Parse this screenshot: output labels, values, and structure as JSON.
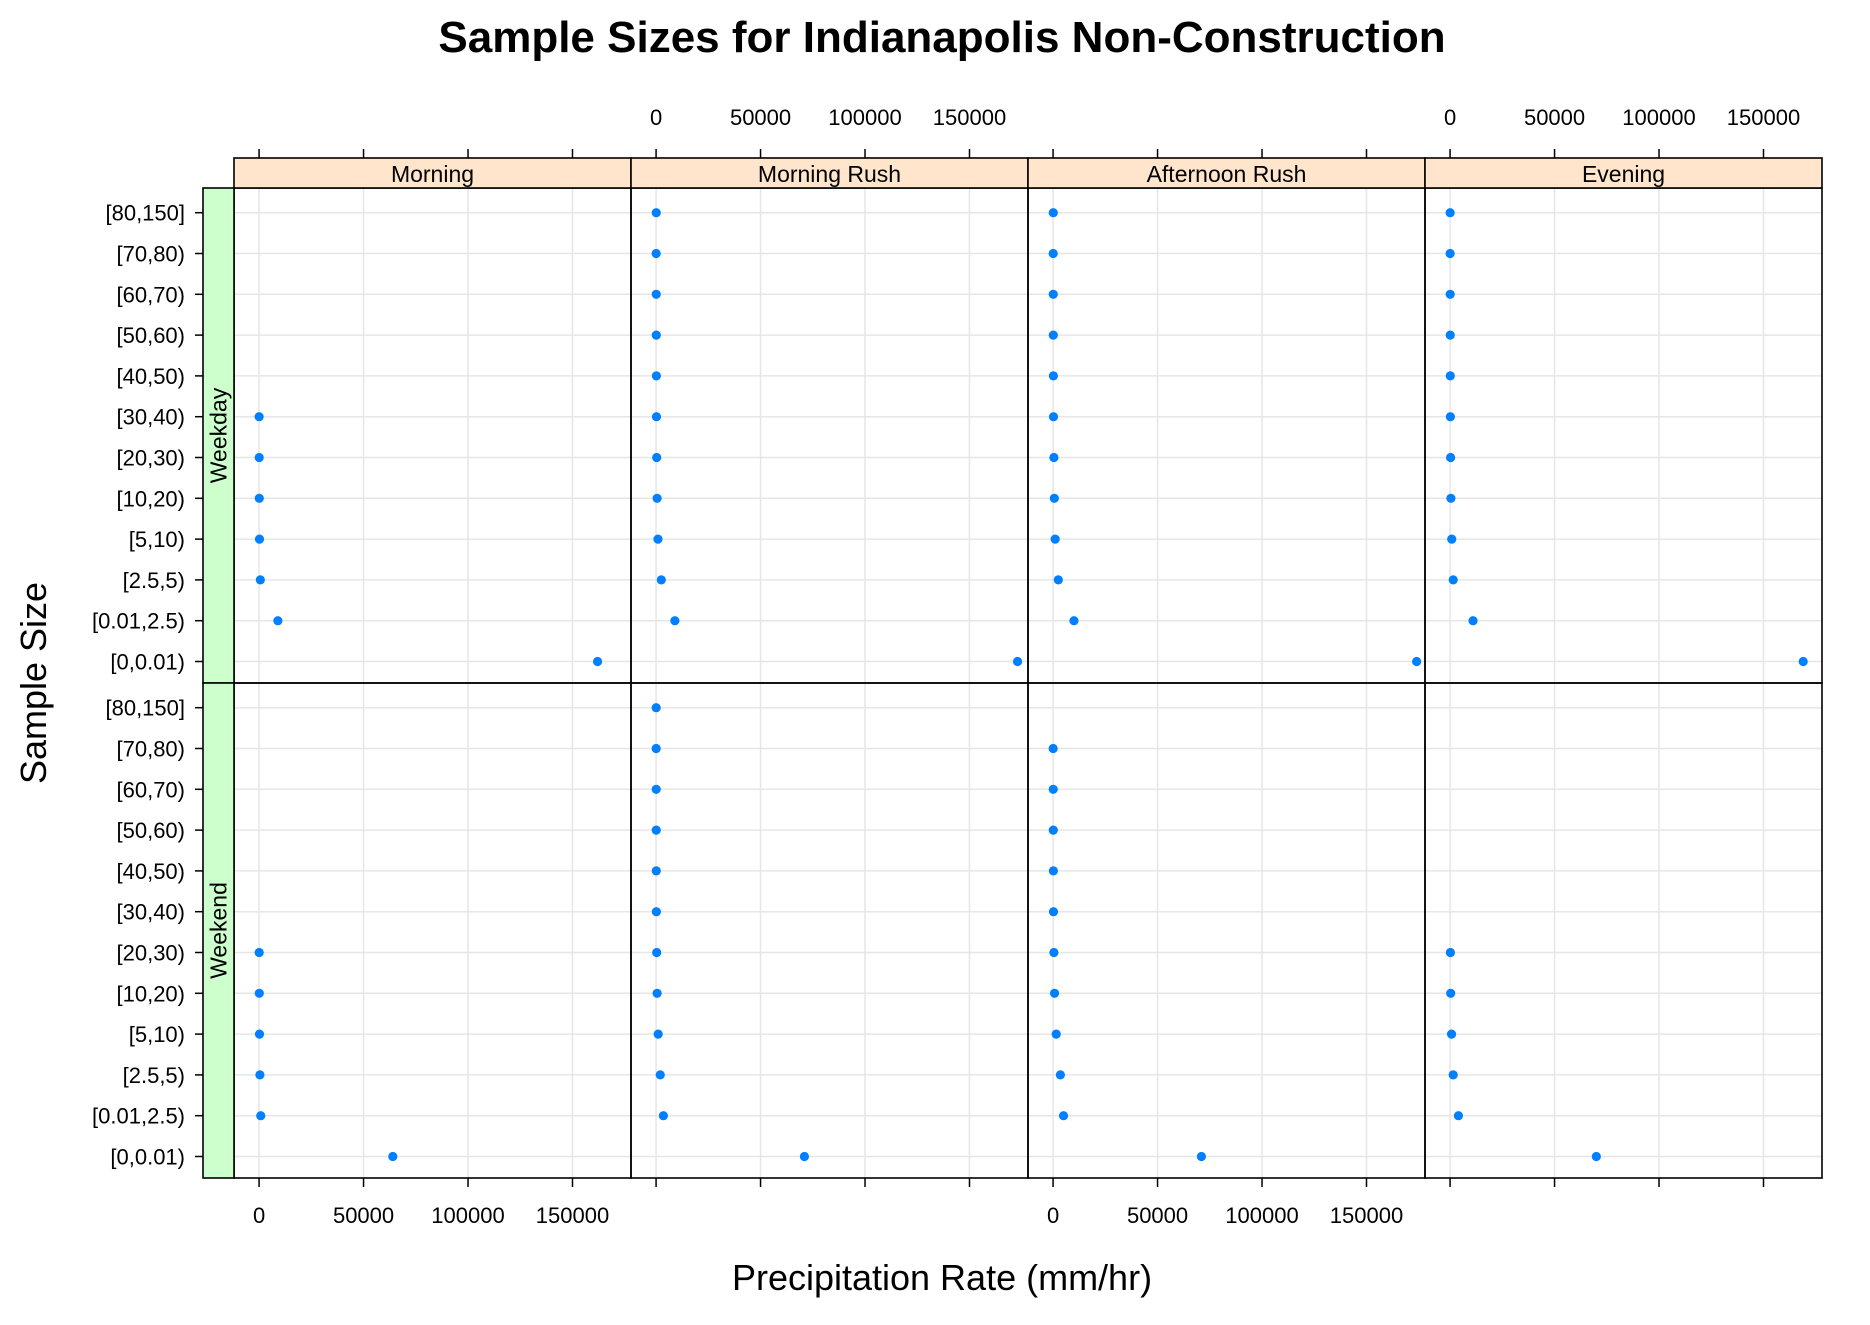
{
  "chart_data": {
    "type": "scatter",
    "title": "Sample Sizes for Indianapolis Non-Construction",
    "xlabel": "Precipitation Rate (mm/hr)",
    "ylabel": "Sample Size",
    "xlim": [
      -12000,
      178000
    ],
    "x_ticks": [
      0,
      50000,
      100000,
      150000
    ],
    "x_tick_labels": [
      "0",
      "50000",
      "100000",
      "150000"
    ],
    "categories": [
      "[0,0.01)",
      "[0.01,2.5)",
      "[2.5,5)",
      "[5,10)",
      "[10,20)",
      "[20,30)",
      "[30,40)",
      "[40,50)",
      "[50,60)",
      "[60,70)",
      "[70,80)",
      "[80,150]"
    ],
    "columns": [
      "Morning",
      "Morning Rush",
      "Afternoon Rush",
      "Evening"
    ],
    "rows": [
      "Weekday",
      "Weekend"
    ],
    "grid": true,
    "point_color": "#0080ff",
    "strip_color_columns": "#ffe5cc",
    "strip_color_rows": "#ccffcc",
    "panels": [
      {
        "row": "Weekday",
        "column": "Morning",
        "values": [
          162000,
          9000,
          600,
          200,
          100,
          60,
          30,
          null,
          null,
          null,
          null,
          null
        ]
      },
      {
        "row": "Weekday",
        "column": "Morning Rush",
        "values": [
          173000,
          9000,
          2500,
          900,
          500,
          300,
          200,
          150,
          100,
          80,
          50,
          80
        ]
      },
      {
        "row": "Weekday",
        "column": "Afternoon Rush",
        "values": [
          174000,
          10000,
          2500,
          1000,
          600,
          400,
          200,
          150,
          100,
          80,
          60,
          100
        ]
      },
      {
        "row": "Weekday",
        "column": "Evening",
        "values": [
          169000,
          11000,
          1500,
          800,
          400,
          250,
          150,
          100,
          80,
          50,
          30,
          30
        ]
      },
      {
        "row": "Weekend",
        "column": "Morning",
        "values": [
          64000,
          800,
          400,
          200,
          100,
          50,
          null,
          null,
          null,
          null,
          null,
          null
        ]
      },
      {
        "row": "Weekend",
        "column": "Morning Rush",
        "values": [
          71000,
          3500,
          2000,
          1000,
          500,
          300,
          150,
          100,
          80,
          60,
          50,
          60
        ]
      },
      {
        "row": "Weekend",
        "column": "Afternoon Rush",
        "values": [
          71000,
          5000,
          3500,
          1500,
          700,
          400,
          200,
          150,
          100,
          80,
          40,
          null
        ]
      },
      {
        "row": "Weekend",
        "column": "Evening",
        "values": [
          70000,
          4000,
          1500,
          700,
          300,
          150,
          null,
          null,
          null,
          null,
          null,
          null
        ]
      }
    ]
  }
}
